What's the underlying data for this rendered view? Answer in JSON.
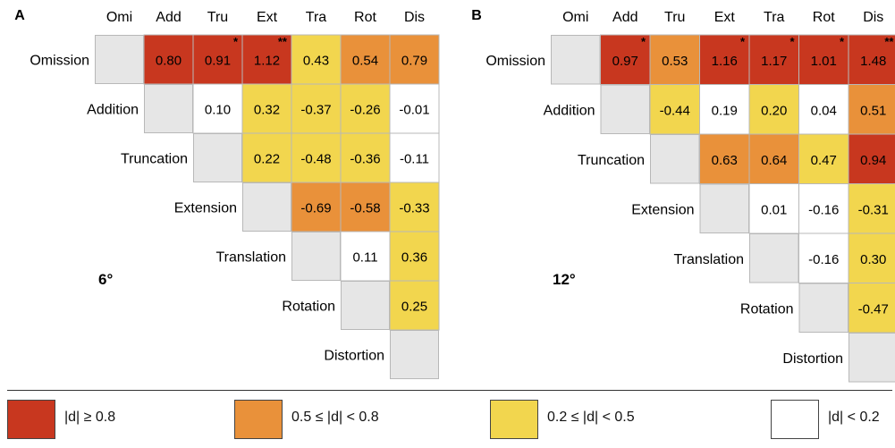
{
  "colors": {
    "large": "#c8371f",
    "medium": "#e9913a",
    "small": "#f2d64e",
    "negligible": "#ffffff",
    "diagonal": "#e6e6e6",
    "grid": "#b8b8b8"
  },
  "legend": [
    {
      "label": "|d| ≥ 0.8",
      "color": "#c8371f"
    },
    {
      "label": "0.5 ≤ |d| < 0.8",
      "color": "#e9913a"
    },
    {
      "label": "0.2 ≤ |d| < 0.5",
      "color": "#f2d64e"
    },
    {
      "label": "|d| < 0.2",
      "color": "#ffffff"
    }
  ],
  "chart_data": [
    {
      "type": "heatmap",
      "panel_label": "A",
      "condition_label": "6°",
      "col_labels": [
        "Omi",
        "Add",
        "Tru",
        "Ext",
        "Tra",
        "Rot",
        "Dis"
      ],
      "row_labels": [
        "Omission",
        "Addition",
        "Truncation",
        "Extension",
        "Translation",
        "Rotation",
        "Distortion"
      ],
      "values": [
        [
          null,
          0.8,
          0.91,
          1.12,
          0.43,
          0.54,
          0.79
        ],
        [
          null,
          null,
          0.1,
          0.32,
          -0.37,
          -0.26,
          -0.01
        ],
        [
          null,
          null,
          null,
          0.22,
          -0.48,
          -0.36,
          -0.11
        ],
        [
          null,
          null,
          null,
          null,
          -0.69,
          -0.58,
          -0.33
        ],
        [
          null,
          null,
          null,
          null,
          null,
          0.11,
          0.36
        ],
        [
          null,
          null,
          null,
          null,
          null,
          null,
          0.25
        ],
        [
          null,
          null,
          null,
          null,
          null,
          null,
          null
        ]
      ],
      "significance": [
        [
          "",
          "",
          "*",
          "**",
          "",
          "",
          ""
        ],
        [
          "",
          "",
          "",
          "",
          "",
          "",
          ""
        ],
        [
          "",
          "",
          "",
          "",
          "",
          "",
          ""
        ],
        [
          "",
          "",
          "",
          "",
          "",
          "",
          ""
        ],
        [
          "",
          "",
          "",
          "",
          "",
          "",
          ""
        ],
        [
          "",
          "",
          "",
          "",
          "",
          "",
          ""
        ],
        [
          "",
          "",
          "",
          "",
          "",
          "",
          ""
        ]
      ]
    },
    {
      "type": "heatmap",
      "panel_label": "B",
      "condition_label": "12°",
      "col_labels": [
        "Omi",
        "Add",
        "Tru",
        "Ext",
        "Tra",
        "Rot",
        "Dis"
      ],
      "row_labels": [
        "Omission",
        "Addition",
        "Truncation",
        "Extension",
        "Translation",
        "Rotation",
        "Distortion"
      ],
      "values": [
        [
          null,
          0.97,
          0.53,
          1.16,
          1.17,
          1.01,
          1.48
        ],
        [
          null,
          null,
          -0.44,
          0.19,
          0.2,
          0.04,
          0.51
        ],
        [
          null,
          null,
          null,
          0.63,
          0.64,
          0.47,
          0.94
        ],
        [
          null,
          null,
          null,
          null,
          0.01,
          -0.16,
          -0.31
        ],
        [
          null,
          null,
          null,
          null,
          null,
          -0.16,
          0.3
        ],
        [
          null,
          null,
          null,
          null,
          null,
          null,
          -0.47
        ],
        [
          null,
          null,
          null,
          null,
          null,
          null,
          null
        ]
      ],
      "significance": [
        [
          "",
          "*",
          "",
          "*",
          "*",
          "*",
          "**"
        ],
        [
          "",
          "",
          "",
          "",
          "",
          "",
          ""
        ],
        [
          "",
          "",
          "",
          "",
          "",
          "",
          ""
        ],
        [
          "",
          "",
          "",
          "",
          "",
          "",
          ""
        ],
        [
          "",
          "",
          "",
          "",
          "",
          "",
          ""
        ],
        [
          "",
          "",
          "",
          "",
          "",
          "",
          ""
        ],
        [
          "",
          "",
          "",
          "",
          "",
          "",
          ""
        ]
      ]
    }
  ]
}
